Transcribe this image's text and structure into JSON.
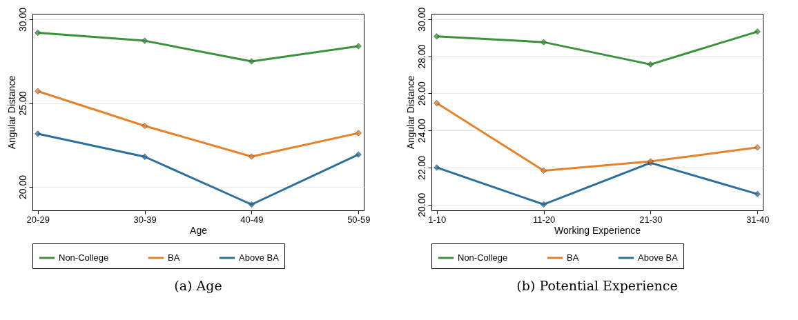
{
  "chart_data": [
    {
      "type": "line",
      "title": "(a)  Age",
      "xlabel": "Age",
      "ylabel": "Angular Distance",
      "categories": [
        "20-29",
        "30-39",
        "40-49",
        "50-59"
      ],
      "series": [
        {
          "name": "Non-College",
          "color": "#3a923a",
          "values": [
            29.2,
            28.72,
            27.49,
            28.4
          ]
        },
        {
          "name": "BA",
          "color": "#e6822a",
          "values": [
            25.71,
            23.64,
            21.81,
            23.21
          ]
        },
        {
          "name": "Above BA",
          "color": "#2a6f9e",
          "values": [
            23.17,
            21.8,
            18.95,
            21.93
          ]
        }
      ],
      "ylim": [
        18.6,
        30.33
      ],
      "yticks": [
        {
          "value": 20,
          "label": "20.00"
        },
        {
          "value": 25,
          "label": "25.00"
        },
        {
          "value": 30,
          "label": "30.00"
        }
      ],
      "grid": "y",
      "legend": "bottom",
      "marker": "diamond"
    },
    {
      "type": "line",
      "title": "(b)  Potential Experience",
      "xlabel": "Working Experience",
      "ylabel": "Angular Distance",
      "categories": [
        "1-10",
        "11-20",
        "21-30",
        "31-40"
      ],
      "series": [
        {
          "name": "Non-College",
          "color": "#3a923a",
          "values": [
            29.07,
            28.76,
            27.56,
            29.33
          ]
        },
        {
          "name": "BA",
          "color": "#e6822a",
          "values": [
            25.47,
            21.83,
            22.33,
            23.08
          ]
        },
        {
          "name": "Above BA",
          "color": "#2a6f9e",
          "values": [
            22.0,
            20.01,
            22.25,
            20.57
          ]
        }
      ],
      "ylim": [
        19.69,
        30.29
      ],
      "yticks": [
        {
          "value": 20,
          "label": "20.00"
        },
        {
          "value": 22,
          "label": "22.00"
        },
        {
          "value": 24,
          "label": "24.00"
        },
        {
          "value": 26,
          "label": "26.00"
        },
        {
          "value": 28,
          "label": "28.00"
        },
        {
          "value": 30,
          "label": "30.00"
        }
      ],
      "grid": "y",
      "legend": "bottom",
      "marker": "diamond"
    }
  ]
}
